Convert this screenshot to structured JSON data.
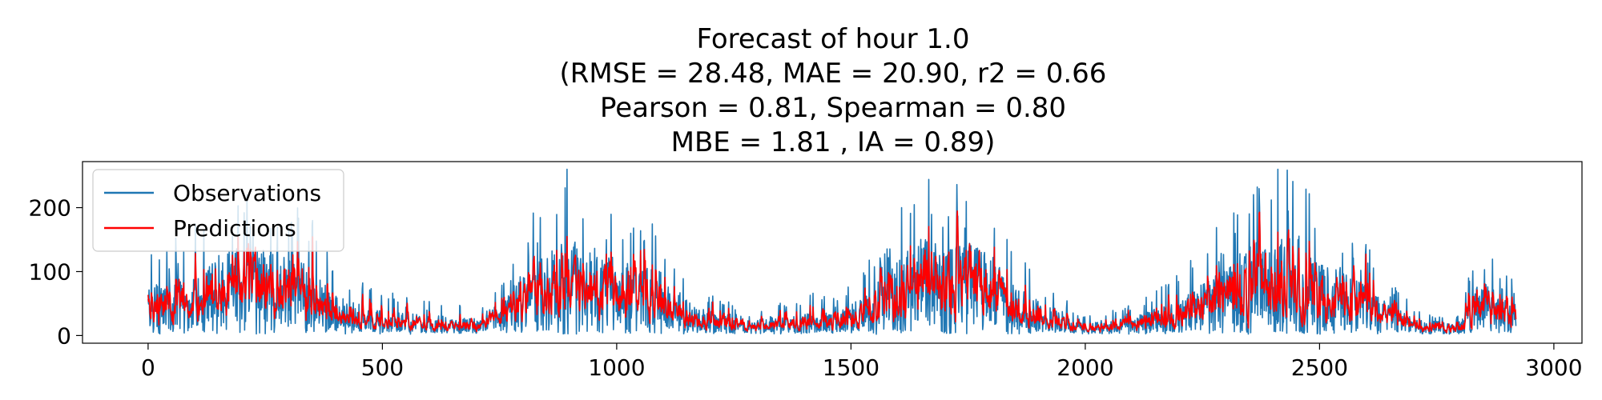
{
  "chart_data": {
    "type": "line",
    "title": [
      "Forecast of hour 1.0",
      "(RMSE = 28.48, MAE = 20.90, r2 = 0.66",
      "Pearson = 0.81, Spearman = 0.80",
      "MBE = 1.81 , IA = 0.89)"
    ],
    "xlabel": "",
    "ylabel": "",
    "xlim": [
      -140,
      3060
    ],
    "ylim": [
      -12,
      272
    ],
    "x_ticks": [
      0,
      500,
      1000,
      1500,
      2000,
      2500,
      3000
    ],
    "y_ticks": [
      0,
      100,
      200
    ],
    "x_tick_labels": [
      "0",
      "500",
      "1000",
      "1500",
      "2000",
      "2500",
      "3000"
    ],
    "y_tick_labels": [
      "0",
      "100",
      "200"
    ],
    "legend_position": "upper-left",
    "grid": false,
    "n_points": 2920,
    "envelope_anchors_x": [
      0,
      50,
      100,
      150,
      200,
      250,
      300,
      350,
      400,
      500,
      600,
      700,
      750,
      800,
      850,
      900,
      950,
      1000,
      1050,
      1100,
      1150,
      1200,
      1300,
      1400,
      1500,
      1550,
      1600,
      1650,
      1700,
      1750,
      1800,
      1850,
      1900,
      1950,
      2000,
      2100,
      2200,
      2300,
      2350,
      2400,
      2450,
      2500,
      2550,
      2600,
      2650,
      2700,
      2800,
      2830,
      2850,
      2870,
      2900,
      2920
    ],
    "envelope_anchors_y": [
      55,
      60,
      70,
      90,
      100,
      95,
      90,
      75,
      45,
      28,
      22,
      22,
      35,
      70,
      90,
      110,
      100,
      85,
      80,
      70,
      40,
      28,
      20,
      25,
      35,
      55,
      85,
      110,
      100,
      105,
      90,
      55,
      40,
      28,
      15,
      20,
      40,
      75,
      110,
      105,
      115,
      90,
      75,
      60,
      35,
      20,
      12,
      55,
      60,
      55,
      40,
      50
    ],
    "series": [
      {
        "name": "Observations",
        "color": "#1f77b4"
      },
      {
        "name": "Predictions",
        "color": "#ff0000"
      }
    ]
  }
}
